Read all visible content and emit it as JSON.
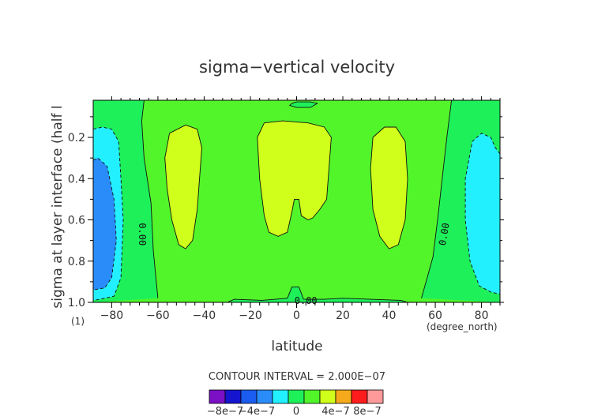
{
  "chart_data": {
    "type": "heatmap",
    "title": "sigma−vertical velocity",
    "xlabel": "latitude",
    "x_unit": "(degree_north)",
    "ylabel": "sigma at layer interface (half l",
    "y_unit": "(1)",
    "xlim": [
      -88,
      88
    ],
    "ylim": [
      1.0,
      0.02
    ],
    "y_inverted": true,
    "xticks": [
      -80,
      -60,
      -40,
      -20,
      0,
      20,
      40,
      60,
      80
    ],
    "yticks": [
      0.2,
      0.4,
      0.6,
      0.8,
      1.0
    ],
    "y_tick_labels": [
      "0.2",
      "0.4",
      "0.6",
      "0.8",
      "1.0"
    ],
    "contour_interval_text": "CONTOUR INTERVAL = 2.000E−07",
    "contour_labels": [
      {
        "text": "0.00",
        "lat": -67,
        "sigma": 0.67,
        "rotate": 90
      },
      {
        "text": "0.00",
        "lat": 64,
        "sigma": 0.67,
        "rotate": -80
      },
      {
        "text": "0.00",
        "lat": 4,
        "sigma": 0.995,
        "rotate": 0
      }
    ],
    "colorbar": {
      "colors": [
        "#7a0fc4",
        "#1515cf",
        "#1a5cf0",
        "#2a8cf8",
        "#23f0ff",
        "#1ef05a",
        "#52f52a",
        "#cfff1a",
        "#f7a91c",
        "#ff1c1c",
        "#ff9a9a"
      ],
      "tick_labels": [
        "−8e−7",
        "−4e−7",
        "0",
        "4e−7",
        "8e−7"
      ]
    },
    "regions": [
      {
        "level": "0 to 2e-7",
        "color": "#52f52a",
        "points": [
          [
            -88,
            0.02
          ],
          [
            88,
            0.02
          ],
          [
            88,
            1.0
          ],
          [
            -88,
            1.0
          ]
        ]
      },
      {
        "level": "-2e-7 to 0",
        "color": "#1ef05a",
        "points": [
          [
            -88,
            0.02
          ],
          [
            -66,
            0.02
          ],
          [
            -67,
            0.12
          ],
          [
            -66,
            0.3
          ],
          [
            -63,
            0.52
          ],
          [
            -62,
            0.75
          ],
          [
            -60,
            0.98
          ],
          [
            -88,
            1.0
          ]
        ]
      },
      {
        "level": "-2e-7 to 0",
        "color": "#1ef05a",
        "points": [
          [
            67,
            0.02
          ],
          [
            88,
            0.02
          ],
          [
            88,
            1.0
          ],
          [
            54,
            0.98
          ],
          [
            56,
            0.9
          ],
          [
            59,
            0.78
          ],
          [
            61,
            0.6
          ],
          [
            63,
            0.4
          ],
          [
            65,
            0.2
          ]
        ]
      },
      {
        "level": "-2e-7 to 0",
        "color": "#1ef05a",
        "points": [
          [
            -30,
            1.0
          ],
          [
            -27,
            0.985
          ],
          [
            -15,
            0.99
          ],
          [
            -4,
            0.98
          ],
          [
            -2,
            0.925
          ],
          [
            1,
            0.925
          ],
          [
            3,
            0.985
          ],
          [
            12,
            0.985
          ],
          [
            20,
            0.98
          ],
          [
            45,
            0.99
          ],
          [
            48,
            1.0
          ]
        ]
      },
      {
        "level": "-2e-7 to 0",
        "color": "#1ef05a",
        "points": [
          [
            -2,
            0.035
          ],
          [
            0,
            0.028
          ],
          [
            6,
            0.028
          ],
          [
            9,
            0.035
          ],
          [
            6,
            0.055
          ],
          [
            0,
            0.055
          ],
          [
            -3,
            0.045
          ]
        ]
      },
      {
        "level": "-4e-7 to -2e-7",
        "color": "#23f0ff",
        "points": [
          [
            -88,
            0.16
          ],
          [
            -84,
            0.15
          ],
          [
            -80,
            0.16
          ],
          [
            -77,
            0.22
          ],
          [
            -76,
            0.4
          ],
          [
            -75,
            0.6
          ],
          [
            -76,
            0.88
          ],
          [
            -79,
            0.97
          ],
          [
            -85,
            0.985
          ],
          [
            -88,
            0.99
          ]
        ]
      },
      {
        "level": "-6e-7 to -4e-7",
        "color": "#2a8cf8",
        "points": [
          [
            -88,
            0.31
          ],
          [
            -86,
            0.3
          ],
          [
            -82,
            0.34
          ],
          [
            -79,
            0.5
          ],
          [
            -78,
            0.7
          ],
          [
            -80,
            0.88
          ],
          [
            -83,
            0.93
          ],
          [
            -88,
            0.94
          ]
        ]
      },
      {
        "level": "-4e-7 to -2e-7",
        "color": "#23f0ff",
        "points": [
          [
            88,
            0.28
          ],
          [
            86,
            0.25
          ],
          [
            84,
            0.2
          ],
          [
            80,
            0.18
          ],
          [
            76,
            0.22
          ],
          [
            73,
            0.4
          ],
          [
            73,
            0.6
          ],
          [
            75,
            0.8
          ],
          [
            79,
            0.92
          ],
          [
            84,
            0.95
          ],
          [
            88,
            0.96
          ]
        ]
      },
      {
        "level": "2e-7 to 4e-7",
        "color": "#cfff1a",
        "points": [
          [
            -48,
            0.14
          ],
          [
            -55,
            0.18
          ],
          [
            -57,
            0.3
          ],
          [
            -56,
            0.45
          ],
          [
            -54,
            0.6
          ],
          [
            -51,
            0.72
          ],
          [
            -48,
            0.74
          ],
          [
            -45,
            0.7
          ],
          [
            -43,
            0.55
          ],
          [
            -42,
            0.4
          ],
          [
            -41,
            0.25
          ],
          [
            -43,
            0.16
          ]
        ]
      },
      {
        "level": "2e-7 to 4e-7",
        "color": "#cfff1a",
        "points": [
          [
            -14,
            0.13
          ],
          [
            -17,
            0.2
          ],
          [
            -16,
            0.4
          ],
          [
            -14,
            0.58
          ],
          [
            -12,
            0.66
          ],
          [
            -8,
            0.68
          ],
          [
            -4,
            0.66
          ],
          [
            -2,
            0.56
          ],
          [
            -1,
            0.5
          ],
          [
            1,
            0.5
          ],
          [
            2,
            0.58
          ],
          [
            5,
            0.6
          ],
          [
            7,
            0.59
          ],
          [
            10,
            0.55
          ],
          [
            13,
            0.5
          ],
          [
            14,
            0.35
          ],
          [
            15,
            0.2
          ],
          [
            12,
            0.15
          ],
          [
            5,
            0.13
          ],
          [
            -6,
            0.12
          ]
        ]
      },
      {
        "level": "2e-7 to 4e-7",
        "color": "#cfff1a",
        "points": [
          [
            38,
            0.15
          ],
          [
            33,
            0.2
          ],
          [
            32,
            0.35
          ],
          [
            33,
            0.55
          ],
          [
            36,
            0.68
          ],
          [
            40,
            0.74
          ],
          [
            44,
            0.72
          ],
          [
            47,
            0.6
          ],
          [
            48,
            0.4
          ],
          [
            47,
            0.22
          ],
          [
            43,
            0.15
          ]
        ]
      }
    ],
    "contour_lines": [
      {
        "value": "0",
        "style": "solid",
        "points": [
          [
            -66,
            0.02
          ],
          [
            -67,
            0.12
          ],
          [
            -66,
            0.3
          ],
          [
            -63,
            0.52
          ],
          [
            -62,
            0.75
          ],
          [
            -60,
            0.98
          ]
        ]
      },
      {
        "value": "0",
        "style": "solid",
        "points": [
          [
            67,
            0.02
          ],
          [
            65,
            0.2
          ],
          [
            63,
            0.4
          ],
          [
            61,
            0.6
          ],
          [
            59,
            0.78
          ],
          [
            56,
            0.9
          ],
          [
            54,
            0.98
          ]
        ]
      },
      {
        "value": "0",
        "style": "solid",
        "points": [
          [
            -30,
            1.0
          ],
          [
            -27,
            0.985
          ],
          [
            -15,
            0.99
          ],
          [
            -4,
            0.98
          ],
          [
            -2,
            0.925
          ],
          [
            1,
            0.925
          ],
          [
            3,
            0.985
          ],
          [
            12,
            0.985
          ],
          [
            20,
            0.98
          ],
          [
            45,
            0.99
          ],
          [
            48,
            1.0
          ]
        ]
      },
      {
        "value": "0",
        "style": "solid",
        "points": [
          [
            -2,
            0.035
          ],
          [
            0,
            0.028
          ],
          [
            6,
            0.028
          ],
          [
            9,
            0.035
          ],
          [
            6,
            0.055
          ],
          [
            0,
            0.055
          ],
          [
            -3,
            0.045
          ],
          [
            -2,
            0.035
          ]
        ]
      },
      {
        "value": "-2e-7",
        "style": "dashed",
        "points": [
          [
            -88,
            0.16
          ],
          [
            -84,
            0.15
          ],
          [
            -80,
            0.16
          ],
          [
            -77,
            0.22
          ],
          [
            -76,
            0.4
          ],
          [
            -75,
            0.6
          ],
          [
            -76,
            0.88
          ],
          [
            -79,
            0.97
          ],
          [
            -85,
            0.985
          ],
          [
            -88,
            0.99
          ]
        ]
      },
      {
        "value": "-4e-7",
        "style": "dashed",
        "points": [
          [
            -88,
            0.31
          ],
          [
            -86,
            0.3
          ],
          [
            -82,
            0.34
          ],
          [
            -79,
            0.5
          ],
          [
            -78,
            0.7
          ],
          [
            -80,
            0.88
          ],
          [
            -83,
            0.93
          ],
          [
            -88,
            0.94
          ]
        ]
      },
      {
        "value": "-2e-7",
        "style": "dashed",
        "points": [
          [
            88,
            0.28
          ],
          [
            86,
            0.25
          ],
          [
            84,
            0.2
          ],
          [
            80,
            0.18
          ],
          [
            76,
            0.22
          ],
          [
            73,
            0.4
          ],
          [
            73,
            0.6
          ],
          [
            75,
            0.8
          ],
          [
            79,
            0.92
          ],
          [
            84,
            0.95
          ],
          [
            88,
            0.96
          ]
        ]
      },
      {
        "value": "2e-7",
        "style": "solid",
        "points": [
          [
            -48,
            0.14
          ],
          [
            -55,
            0.18
          ],
          [
            -57,
            0.3
          ],
          [
            -56,
            0.45
          ],
          [
            -54,
            0.6
          ],
          [
            -51,
            0.72
          ],
          [
            -48,
            0.74
          ],
          [
            -45,
            0.7
          ],
          [
            -43,
            0.55
          ],
          [
            -42,
            0.4
          ],
          [
            -41,
            0.25
          ],
          [
            -43,
            0.16
          ],
          [
            -48,
            0.14
          ]
        ]
      },
      {
        "value": "2e-7",
        "style": "solid",
        "points": [
          [
            -14,
            0.13
          ],
          [
            -17,
            0.2
          ],
          [
            -16,
            0.4
          ],
          [
            -14,
            0.58
          ],
          [
            -12,
            0.66
          ],
          [
            -8,
            0.68
          ],
          [
            -4,
            0.66
          ],
          [
            -2,
            0.56
          ],
          [
            -1,
            0.5
          ],
          [
            1,
            0.5
          ],
          [
            2,
            0.58
          ],
          [
            5,
            0.6
          ],
          [
            7,
            0.59
          ],
          [
            10,
            0.55
          ],
          [
            13,
            0.5
          ],
          [
            14,
            0.35
          ],
          [
            15,
            0.2
          ],
          [
            12,
            0.15
          ],
          [
            5,
            0.13
          ],
          [
            -6,
            0.12
          ],
          [
            -14,
            0.13
          ]
        ]
      },
      {
        "value": "2e-7",
        "style": "solid",
        "points": [
          [
            38,
            0.15
          ],
          [
            33,
            0.2
          ],
          [
            32,
            0.35
          ],
          [
            33,
            0.55
          ],
          [
            36,
            0.68
          ],
          [
            40,
            0.74
          ],
          [
            44,
            0.72
          ],
          [
            47,
            0.6
          ],
          [
            48,
            0.4
          ],
          [
            47,
            0.22
          ],
          [
            43,
            0.15
          ],
          [
            38,
            0.15
          ]
        ]
      }
    ]
  }
}
